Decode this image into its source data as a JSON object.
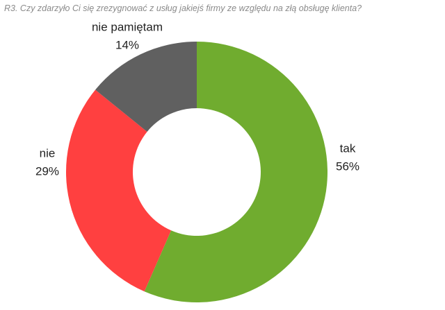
{
  "chart_data": {
    "type": "donut",
    "title": "R3. Czy zdarzyło Ci się zrezygnować z usług jakiejś firmy ze względu na złą obsługę klienta?",
    "categories": [
      "tak",
      "nie",
      "nie pamiętam"
    ],
    "values": [
      56,
      29,
      14
    ],
    "value_labels": [
      "56%",
      "29%",
      "14%"
    ],
    "colors": [
      "#70ac2f",
      "#ff4040",
      "#606060"
    ]
  }
}
